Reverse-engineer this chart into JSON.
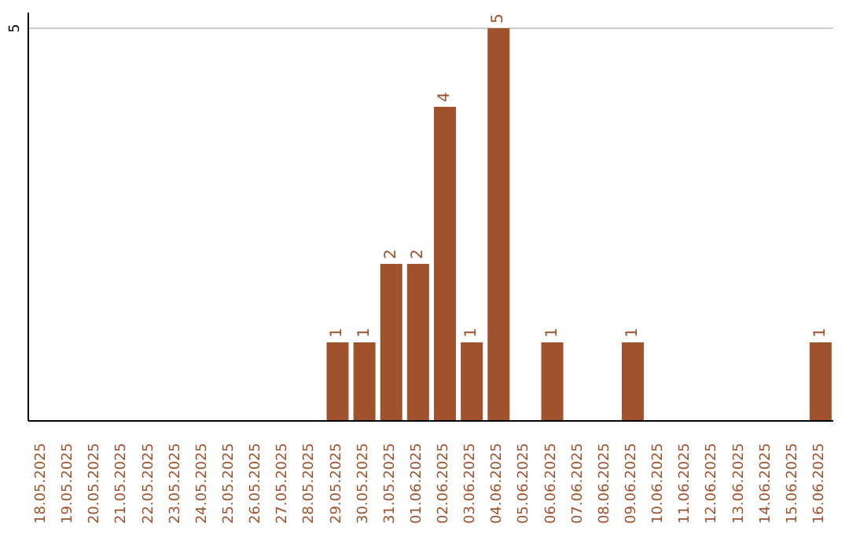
{
  "chart_data": {
    "type": "bar",
    "categories": [
      "18.05.2025",
      "19.05.2025",
      "20.05.2025",
      "21.05.2025",
      "22.05.2025",
      "23.05.2025",
      "24.05.2025",
      "25.05.2025",
      "26.05.2025",
      "27.05.2025",
      "28.05.2025",
      "29.05.2025",
      "30.05.2025",
      "31.05.2025",
      "01.06.2025",
      "02.06.2025",
      "03.06.2025",
      "04.06.2025",
      "05.06.2025",
      "06.06.2025",
      "07.06.2025",
      "08.06.2025",
      "09.06.2025",
      "10.06.2025",
      "11.06.2025",
      "12.06.2025",
      "13.06.2025",
      "14.06.2025",
      "15.06.2025",
      "16.06.2025"
    ],
    "values": [
      0,
      0,
      0,
      0,
      0,
      0,
      0,
      0,
      0,
      0,
      0,
      1,
      1,
      2,
      2,
      4,
      1,
      5,
      0,
      1,
      0,
      0,
      1,
      0,
      0,
      0,
      0,
      0,
      0,
      1
    ],
    "value_labels": [
      null,
      null,
      null,
      null,
      null,
      null,
      null,
      null,
      null,
      null,
      null,
      "1",
      "1",
      "2",
      "2",
      "4",
      "1",
      "5",
      null,
      "1",
      null,
      null,
      "1",
      null,
      null,
      null,
      null,
      null,
      null,
      "1"
    ],
    "color": "#a0522d",
    "ylim": [
      0,
      5.2
    ],
    "yticks": [
      5
    ],
    "grid": "y",
    "legend": false
  }
}
